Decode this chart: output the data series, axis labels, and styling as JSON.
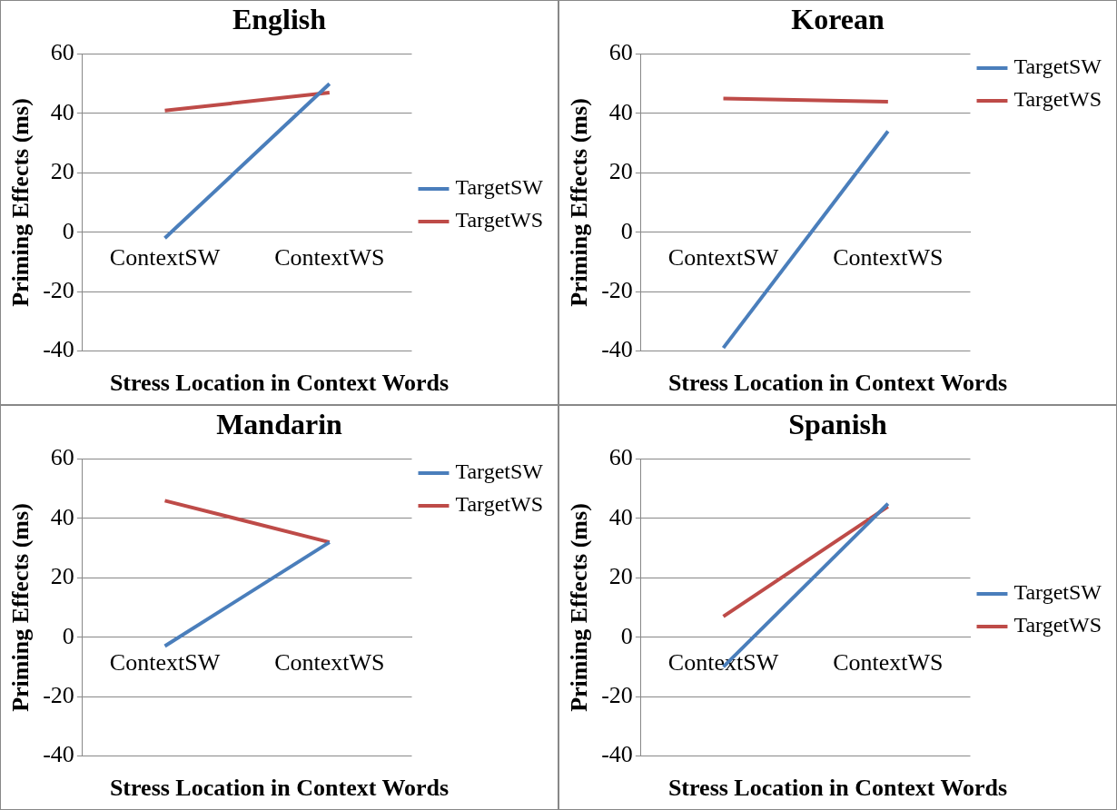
{
  "chart_data": [
    {
      "type": "line",
      "title": "English",
      "ylabel": "Priming Effects (ms)",
      "xlabel": "Stress Location in Context Words",
      "categories": [
        "ContextSW",
        "ContextWS"
      ],
      "ylim": [
        -40,
        60
      ],
      "yticks": [
        -40,
        -20,
        0,
        20,
        40,
        60
      ],
      "grid": "y",
      "legend": "right",
      "marker": "none",
      "series": [
        {
          "name": "TargetSW",
          "color": "#4a7ebb",
          "values": [
            -2,
            50
          ]
        },
        {
          "name": "TargetWS",
          "color": "#be4b48",
          "values": [
            41,
            47
          ]
        }
      ]
    },
    {
      "type": "line",
      "title": "Korean",
      "ylabel": "Priming Effects (ms)",
      "xlabel": "Stress Location in Context Words",
      "categories": [
        "ContextSW",
        "ContextWS"
      ],
      "ylim": [
        -40,
        60
      ],
      "yticks": [
        -40,
        -20,
        0,
        20,
        40,
        60
      ],
      "grid": "y",
      "legend": "top right",
      "marker": "none",
      "series": [
        {
          "name": "TargetSW",
          "color": "#4a7ebb",
          "values": [
            -39,
            34
          ]
        },
        {
          "name": "TargetWS",
          "color": "#be4b48",
          "values": [
            45,
            44
          ]
        }
      ]
    },
    {
      "type": "line",
      "title": "Mandarin",
      "ylabel": "Priming Effects (ms)",
      "xlabel": "Stress Location in Context Words",
      "categories": [
        "ContextSW",
        "ContextWS"
      ],
      "ylim": [
        -40,
        60
      ],
      "yticks": [
        -40,
        -20,
        0,
        20,
        40,
        60
      ],
      "grid": "y",
      "legend": "top right",
      "marker": "none",
      "series": [
        {
          "name": "TargetSW",
          "color": "#4a7ebb",
          "values": [
            -3,
            32
          ]
        },
        {
          "name": "TargetWS",
          "color": "#be4b48",
          "values": [
            46,
            32
          ]
        }
      ]
    },
    {
      "type": "line",
      "title": "Spanish",
      "ylabel": "Priming Effects (ms)",
      "xlabel": "Stress Location in Context Words",
      "categories": [
        "ContextSW",
        "ContextWS"
      ],
      "ylim": [
        -40,
        60
      ],
      "yticks": [
        -40,
        -20,
        0,
        20,
        40,
        60
      ],
      "grid": "y",
      "legend": "right",
      "marker": "none",
      "series": [
        {
          "name": "TargetSW",
          "color": "#4a7ebb",
          "values": [
            -10,
            45
          ]
        },
        {
          "name": "TargetWS",
          "color": "#be4b48",
          "values": [
            7,
            44
          ]
        }
      ]
    }
  ]
}
